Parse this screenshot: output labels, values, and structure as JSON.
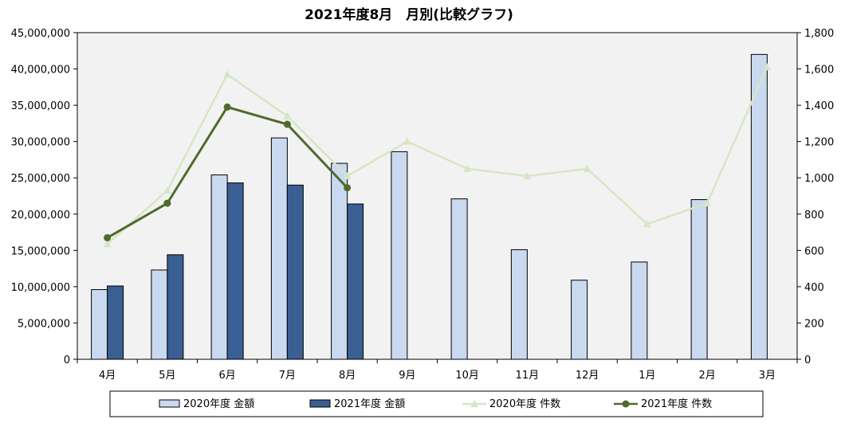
{
  "chart_data": {
    "type": "bar",
    "title": "2021年度8月　月別(比較グラフ)",
    "categories": [
      "4月",
      "5月",
      "6月",
      "7月",
      "8月",
      "9月",
      "10月",
      "11月",
      "12月",
      "1月",
      "2月",
      "3月"
    ],
    "y_left": {
      "min": 0,
      "max": 45000000,
      "step": 5000000,
      "tick_labels": [
        "0",
        "5,000,000",
        "10,000,000",
        "15,000,000",
        "20,000,000",
        "25,000,000",
        "30,000,000",
        "35,000,000",
        "40,000,000",
        "45,000,000"
      ]
    },
    "y_right": {
      "min": 0,
      "max": 1800,
      "step": 200,
      "tick_labels": [
        "0",
        "200",
        "400",
        "600",
        "800",
        "1,000",
        "1,200",
        "1,400",
        "1,600",
        "1,800"
      ]
    },
    "bar_series": [
      {
        "name": "2020年度 金額",
        "color": "#c9d9f0",
        "values": [
          9600000,
          12300000,
          25400000,
          30500000,
          27000000,
          28600000,
          22100000,
          15100000,
          10900000,
          13400000,
          22000000,
          42000000
        ]
      },
      {
        "name": "2021年度 金額",
        "color": "#3a5f93",
        "values": [
          10100000,
          14400000,
          24300000,
          24000000,
          21400000,
          null,
          null,
          null,
          null,
          null,
          null,
          null
        ]
      }
    ],
    "line_series": [
      {
        "name": "2020年度 件数",
        "color": "#d6e6c4",
        "marker": "triangle",
        "values": [
          635,
          930,
          1570,
          1340,
          1010,
          1200,
          1050,
          1010,
          1050,
          745,
          860,
          1610
        ]
      },
      {
        "name": "2021年度 件数",
        "color": "#4f6a2c",
        "marker": "circle",
        "values": [
          670,
          860,
          1390,
          1295,
          945,
          null,
          null,
          null,
          null,
          null,
          null,
          null
        ]
      }
    ],
    "grid": false,
    "legend_position": "bottom"
  },
  "legend": {
    "items": [
      "2020年度 金額",
      "2021年度 金額",
      "2020年度 件数",
      "2021年度 件数"
    ]
  }
}
